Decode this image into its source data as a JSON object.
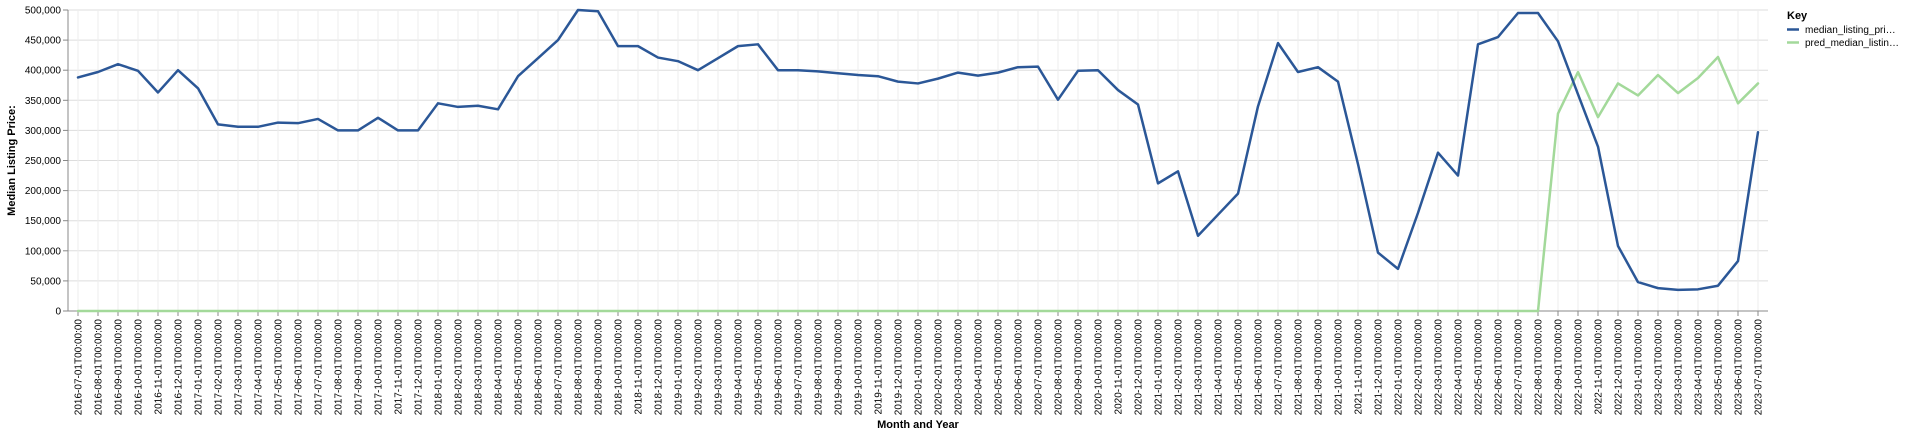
{
  "chart_data": {
    "type": "line",
    "xlabel": "Month and Year",
    "ylabel": "Median Listing Price:",
    "ylim": [
      0,
      500000
    ],
    "y_ticks": [
      "0",
      "50,000",
      "100,000",
      "150,000",
      "200,000",
      "250,000",
      "300,000",
      "350,000",
      "400,000",
      "450,000",
      "500,000"
    ],
    "grid": true,
    "legend": {
      "title": "Key",
      "placement": "top-right",
      "entries": [
        "median_listing_pri…",
        "pred_median_listin…"
      ]
    },
    "colors": [
      "#2b5797",
      "#a3d99a"
    ],
    "x": [
      "2016-07-01T00:00:00",
      "2016-08-01T00:00:00",
      "2016-09-01T00:00:00",
      "2016-10-01T00:00:00",
      "2016-11-01T00:00:00",
      "2016-12-01T00:00:00",
      "2017-01-01T00:00:00",
      "2017-02-01T00:00:00",
      "2017-03-01T00:00:00",
      "2017-04-01T00:00:00",
      "2017-05-01T00:00:00",
      "2017-06-01T00:00:00",
      "2017-07-01T00:00:00",
      "2017-08-01T00:00:00",
      "2017-09-01T00:00:00",
      "2017-10-01T00:00:00",
      "2017-11-01T00:00:00",
      "2017-12-01T00:00:00",
      "2018-01-01T00:00:00",
      "2018-02-01T00:00:00",
      "2018-03-01T00:00:00",
      "2018-04-01T00:00:00",
      "2018-05-01T00:00:00",
      "2018-06-01T00:00:00",
      "2018-07-01T00:00:00",
      "2018-08-01T00:00:00",
      "2018-09-01T00:00:00",
      "2018-10-01T00:00:00",
      "2018-11-01T00:00:00",
      "2018-12-01T00:00:00",
      "2019-01-01T00:00:00",
      "2019-02-01T00:00:00",
      "2019-03-01T00:00:00",
      "2019-04-01T00:00:00",
      "2019-05-01T00:00:00",
      "2019-06-01T00:00:00",
      "2019-07-01T00:00:00",
      "2019-08-01T00:00:00",
      "2019-09-01T00:00:00",
      "2019-10-01T00:00:00",
      "2019-11-01T00:00:00",
      "2019-12-01T00:00:00",
      "2020-01-01T00:00:00",
      "2020-02-01T00:00:00",
      "2020-03-01T00:00:00",
      "2020-04-01T00:00:00",
      "2020-05-01T00:00:00",
      "2020-06-01T00:00:00",
      "2020-07-01T00:00:00",
      "2020-08-01T00:00:00",
      "2020-09-01T00:00:00",
      "2020-10-01T00:00:00",
      "2020-11-01T00:00:00",
      "2020-12-01T00:00:00",
      "2021-01-01T00:00:00",
      "2021-02-01T00:00:00",
      "2021-03-01T00:00:00",
      "2021-04-01T00:00:00",
      "2021-05-01T00:00:00",
      "2021-06-01T00:00:00",
      "2021-07-01T00:00:00",
      "2021-08-01T00:00:00",
      "2021-09-01T00:00:00",
      "2021-10-01T00:00:00",
      "2021-11-01T00:00:00",
      "2021-12-01T00:00:00",
      "2022-01-01T00:00:00",
      "2022-02-01T00:00:00",
      "2022-03-01T00:00:00",
      "2022-04-01T00:00:00",
      "2022-05-01T00:00:00",
      "2022-06-01T00:00:00",
      "2022-07-01T00:00:00",
      "2022-08-01T00:00:00",
      "2022-09-01T00:00:00",
      "2022-10-01T00:00:00",
      "2022-11-01T00:00:00",
      "2022-12-01T00:00:00",
      "2023-01-01T00:00:00",
      "2023-02-01T00:00:00",
      "2023-03-01T00:00:00",
      "2023-04-01T00:00:00",
      "2023-05-01T00:00:00",
      "2023-06-01T00:00:00",
      "2023-07-01T00:00:00"
    ],
    "series": [
      {
        "name": "median_listing_pri…",
        "color": "#2b5797",
        "values": [
          388000,
          397000,
          410000,
          399000,
          363000,
          400000,
          370000,
          310000,
          306000,
          306000,
          313000,
          312000,
          319000,
          300000,
          300000,
          321000,
          300000,
          300000,
          345000,
          339000,
          341000,
          335000,
          390000,
          420000,
          450000,
          500000,
          498000,
          440000,
          440000,
          421000,
          415000,
          400000,
          420000,
          440000,
          443000,
          400000,
          400000,
          398000,
          395000,
          392000,
          390000,
          381000,
          378000,
          386000,
          396000,
          391000,
          396000,
          405000,
          406000,
          351000,
          399000,
          400000,
          367000,
          343000,
          212000,
          232000,
          125000,
          160000,
          195000,
          340000,
          445000,
          397000,
          405000,
          381000,
          244000,
          97000,
          70000,
          163000,
          263000,
          225000,
          443000,
          455000,
          495000,
          495000,
          448000,
          360000,
          273000,
          108000,
          48000,
          38000,
          35000,
          36000,
          42000,
          83000,
          297000
        ]
      },
      {
        "name": "pred_median_listin…",
        "color": "#a3d99a",
        "values": [
          0,
          0,
          0,
          0,
          0,
          0,
          0,
          0,
          0,
          0,
          0,
          0,
          0,
          0,
          0,
          0,
          0,
          0,
          0,
          0,
          0,
          0,
          0,
          0,
          0,
          0,
          0,
          0,
          0,
          0,
          0,
          0,
          0,
          0,
          0,
          0,
          0,
          0,
          0,
          0,
          0,
          0,
          0,
          0,
          0,
          0,
          0,
          0,
          0,
          0,
          0,
          0,
          0,
          0,
          0,
          0,
          0,
          0,
          0,
          0,
          0,
          0,
          0,
          0,
          0,
          0,
          0,
          0,
          0,
          0,
          0,
          0,
          0,
          0,
          328000,
          397000,
          322000,
          378000,
          358000,
          392000,
          362000,
          387000,
          422000,
          345000,
          378000
        ]
      }
    ]
  }
}
